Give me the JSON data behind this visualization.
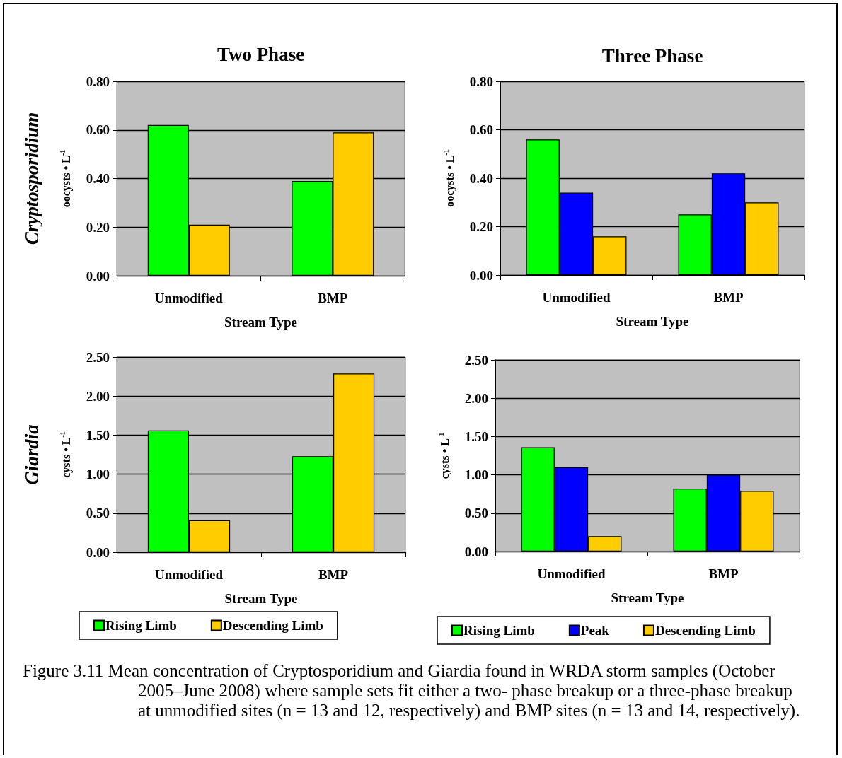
{
  "chart_data": [
    {
      "type": "bar",
      "title": "Two Phase",
      "xlabel": "Stream Type",
      "ylabel": "oocysts • L$^{-1}$",
      "annotations": [
        "Cryptosporidium"
      ],
      "categories": [
        "Unmodified",
        "BMP"
      ],
      "series": [
        {
          "color": "#00ff00",
          "values": [
            0.62,
            0.39
          ]
        },
        {
          "color": "#ffcc00",
          "values": [
            0.21,
            0.59
          ]
        }
      ],
      "ylim": [
        0,
        0.8
      ],
      "yticks": [
        {
          "value": 0,
          "label": "0.00"
        },
        {
          "value": 0.2,
          "label": "0.20"
        },
        {
          "value": 0.4,
          "label": "0.40"
        },
        {
          "value": 0.6,
          "label": "0.60"
        },
        {
          "value": 0.8,
          "label": "0.80"
        }
      ],
      "grid": "y",
      "legend": false
    },
    {
      "type": "bar",
      "title": "Three Phase",
      "xlabel": "Stream Type",
      "ylabel": "oocysts • L$^{-1}$",
      "categories": [
        "Unmodified",
        "BMP"
      ],
      "series": [
        {
          "color": "#00ff00",
          "values": [
            0.56,
            0.25
          ]
        },
        {
          "color": "#0000ff",
          "values": [
            0.34,
            0.42
          ]
        },
        {
          "color": "#ffcc00",
          "values": [
            0.16,
            0.3
          ]
        }
      ],
      "ylim": [
        0,
        0.8
      ],
      "yticks": [
        {
          "value": 0,
          "label": "0.00"
        },
        {
          "value": 0.2,
          "label": "0.20"
        },
        {
          "value": 0.4,
          "label": "0.40"
        },
        {
          "value": 0.6,
          "label": "0.60"
        },
        {
          "value": 0.8,
          "label": "0.80"
        }
      ],
      "grid": "y",
      "legend": false
    },
    {
      "type": "bar",
      "xlabel": "Stream Type",
      "ylabel": "cysts • L$^{-1}$",
      "annotations": [
        "Giardia"
      ],
      "categories": [
        "Unmodified",
        "BMP"
      ],
      "series": [
        {
          "name": "Rising Limb",
          "color": "#00ff00",
          "values": [
            1.56,
            1.23
          ]
        },
        {
          "name": "Descending Limb",
          "color": "#ffcc00",
          "values": [
            0.41,
            2.29
          ]
        }
      ],
      "ylim": [
        0,
        2.5
      ],
      "yticks": [
        {
          "value": 0,
          "label": "0.00"
        },
        {
          "value": 0.5,
          "label": "0.50"
        },
        {
          "value": 1,
          "label": "1.00"
        },
        {
          "value": 1.5,
          "label": "1.50"
        },
        {
          "value": 2,
          "label": "2.00"
        },
        {
          "value": 2.5,
          "label": "2.50"
        }
      ],
      "grid": "y",
      "legend": "bottom"
    },
    {
      "type": "bar",
      "xlabel": "Stream Type",
      "ylabel": "cysts • L$^{-1}$",
      "categories": [
        "Unmodified",
        "BMP"
      ],
      "series": [
        {
          "name": "Rising Limb",
          "color": "#00ff00",
          "values": [
            1.36,
            0.82
          ]
        },
        {
          "name": "Peak",
          "color": "#0000ff",
          "values": [
            1.1,
            1.0
          ]
        },
        {
          "name": "Descending Limb",
          "color": "#ffcc00",
          "values": [
            0.2,
            0.79
          ]
        }
      ],
      "ylim": [
        0,
        2.5
      ],
      "yticks": [
        {
          "value": 0,
          "label": "0.00"
        },
        {
          "value": 0.5,
          "label": "0.50"
        },
        {
          "value": 1,
          "label": "1.00"
        },
        {
          "value": 1.5,
          "label": "1.50"
        },
        {
          "value": 2,
          "label": "2.00"
        },
        {
          "value": 2.5,
          "label": "2.50"
        }
      ],
      "grid": "y",
      "legend": "bottom"
    },
    {
      "type": "other",
      "annotations": [
        "Figure 3.11  Mean concentration of Cryptosporidium and Giardia found in WRDA storm samples (October 2005–June 2008) where sample sets fit either a two- phase breakup or a three-phase breakup at unmodified sites (n = 13 and 12, respectively) and BMP sites (n = 13 and 14, respectively)."
      ]
    }
  ]
}
